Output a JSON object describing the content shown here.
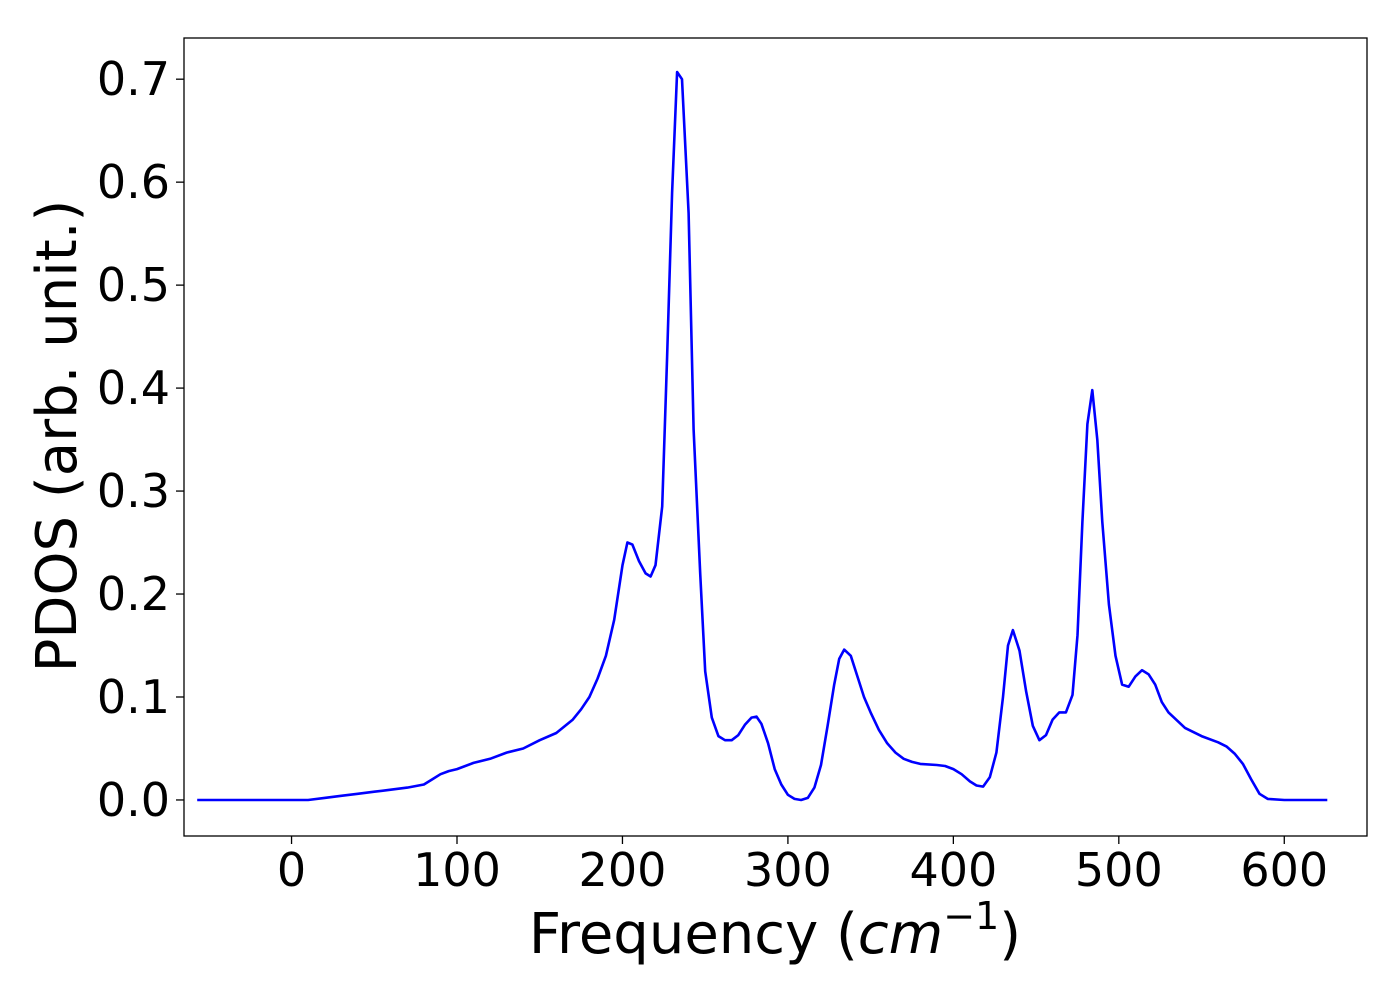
{
  "chart_data": {
    "type": "line",
    "title": "",
    "xlabel": "Frequency (",
    "xlabel_math": "cm",
    "xlabel_sup": "−1",
    "xlabel_close": ")",
    "ylabel": "PDOS (arb. unit.)",
    "xlim": [
      -65,
      650
    ],
    "ylim": [
      -0.035,
      0.74
    ],
    "xticks": [
      0,
      100,
      200,
      300,
      400,
      500,
      600
    ],
    "yticks": [
      0.0,
      0.1,
      0.2,
      0.3,
      0.4,
      0.5,
      0.6,
      0.7
    ],
    "xtick_labels": [
      "0",
      "100",
      "200",
      "300",
      "400",
      "500",
      "600"
    ],
    "ytick_labels": [
      "0.0",
      "0.1",
      "0.2",
      "0.3",
      "0.4",
      "0.5",
      "0.6",
      "0.7"
    ],
    "grid": false,
    "legend": "none",
    "series": [
      {
        "color": "#0000ff",
        "x": [
          -57,
          0,
          10,
          20,
          30,
          40,
          50,
          60,
          70,
          80,
          85,
          90,
          95,
          100,
          110,
          120,
          130,
          140,
          150,
          160,
          170,
          175,
          180,
          185,
          190,
          195,
          200,
          203,
          206,
          210,
          214,
          217,
          220,
          224,
          227,
          230,
          233,
          236,
          240,
          243,
          247,
          250,
          254,
          258,
          262,
          266,
          270,
          274,
          278,
          281,
          284,
          288,
          292,
          296,
          300,
          304,
          308,
          312,
          316,
          320,
          324,
          328,
          331,
          334,
          338,
          342,
          346,
          350,
          355,
          360,
          365,
          370,
          375,
          380,
          390,
          395,
          400,
          405,
          410,
          414,
          418,
          422,
          426,
          430,
          433,
          436,
          440,
          444,
          448,
          452,
          456,
          460,
          464,
          468,
          472,
          475,
          478,
          481,
          484,
          487,
          490,
          494,
          498,
          502,
          506,
          510,
          514,
          518,
          522,
          526,
          530,
          540,
          550,
          560,
          565,
          570,
          575,
          580,
          585,
          590,
          600,
          626
        ],
        "y": [
          0.0,
          0.0,
          0.0,
          0.002,
          0.004,
          0.006,
          0.008,
          0.01,
          0.012,
          0.015,
          0.02,
          0.025,
          0.028,
          0.03,
          0.036,
          0.04,
          0.046,
          0.05,
          0.058,
          0.065,
          0.078,
          0.088,
          0.1,
          0.118,
          0.14,
          0.175,
          0.228,
          0.25,
          0.248,
          0.232,
          0.22,
          0.217,
          0.228,
          0.285,
          0.43,
          0.59,
          0.707,
          0.7,
          0.57,
          0.36,
          0.22,
          0.125,
          0.08,
          0.062,
          0.058,
          0.058,
          0.063,
          0.073,
          0.08,
          0.081,
          0.074,
          0.055,
          0.03,
          0.015,
          0.005,
          0.001,
          0.0,
          0.002,
          0.012,
          0.034,
          0.072,
          0.112,
          0.137,
          0.146,
          0.14,
          0.12,
          0.1,
          0.085,
          0.068,
          0.055,
          0.046,
          0.04,
          0.037,
          0.035,
          0.034,
          0.033,
          0.03,
          0.025,
          0.018,
          0.014,
          0.013,
          0.022,
          0.046,
          0.1,
          0.15,
          0.165,
          0.145,
          0.105,
          0.072,
          0.058,
          0.063,
          0.078,
          0.085,
          0.085,
          0.102,
          0.16,
          0.27,
          0.365,
          0.398,
          0.35,
          0.27,
          0.19,
          0.14,
          0.112,
          0.11,
          0.12,
          0.126,
          0.122,
          0.112,
          0.095,
          0.085,
          0.07,
          0.062,
          0.056,
          0.052,
          0.045,
          0.035,
          0.02,
          0.006,
          0.001,
          0.0,
          0.0
        ]
      }
    ]
  }
}
